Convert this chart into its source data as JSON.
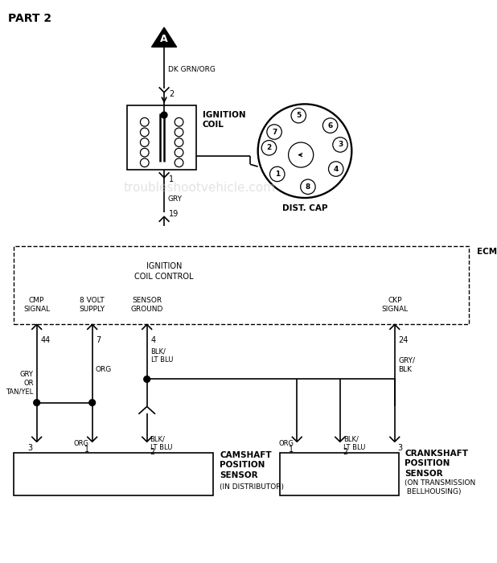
{
  "title": "PART 2",
  "bg_color": "#ffffff",
  "line_color": "#000000",
  "watermark": "troubleshootvehicle.com",
  "watermark_color": "#cccccc",
  "connector_A_label": "A",
  "lbl_dk_grn_org": "DK GRN/ORG",
  "lbl_gry": "GRY",
  "lbl_org": "ORG",
  "lbl_blk_lt_blu": "BLK/\nLT BLU",
  "lbl_gry_blk": "GRY/\nBLK",
  "lbl_gry_or_tan_yel": "GRY\nOR\nTAN/YEL",
  "ecm_label": "ECM",
  "ecm_ign_ctrl": "IGNITION\nCOIL CONTROL",
  "ecm_cmp": "CMP\nSIGNAL",
  "ecm_8v": "8 VOLT\nSUPPLY",
  "ecm_sg": "SENSOR\nGROUND",
  "ecm_ckp": "CKP\nSIGNAL",
  "lbl_ignition_coil": "IGNITION\nCOIL",
  "lbl_dist_cap": "DIST. CAP",
  "lbl_cam": "CAMSHAFT\nPOSITION\nSENSOR",
  "lbl_cam_sub": "(IN DISTRIBUTOR)",
  "lbl_crank": "CRANKSHAFT\nPOSITION\nSENSOR",
  "lbl_crank_sub": "(ON TRANSMISSION\n BELLHOUSING)",
  "dist_nums": [
    [
      "8",
      -75
    ],
    [
      "1",
      -135
    ],
    [
      "4",
      -25
    ],
    [
      "3",
      15
    ],
    [
      "6",
      50
    ],
    [
      "5",
      105
    ],
    [
      "7",
      150
    ],
    [
      "2",
      175
    ]
  ]
}
